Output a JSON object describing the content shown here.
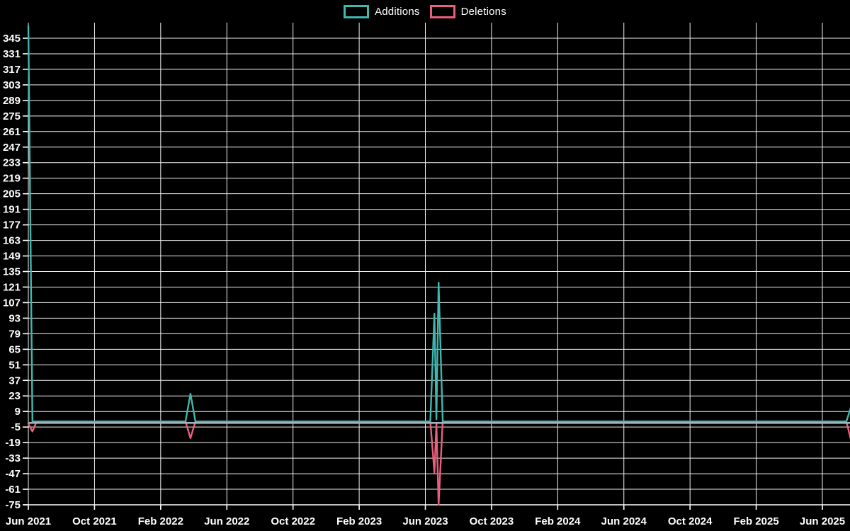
{
  "legend": {
    "items": [
      {
        "label": "Additions",
        "color": "#3fb8af"
      },
      {
        "label": "Deletions",
        "color": "#e9607e"
      }
    ]
  },
  "chart_data": {
    "type": "line",
    "title": "",
    "background_color": "#000000",
    "gridline_color": "#f2f2f2",
    "text_color": "#ffffff",
    "zero_line_color": "#9fb4c0",
    "grid": true,
    "legend_position": "top-center",
    "x_axis": {
      "start": "Jun 2021",
      "end": "Jun 2025",
      "months_between_ticks": 4,
      "total_months": 48,
      "tick_labels": [
        "Jun 2021",
        "Oct 2021",
        "Feb 2022",
        "Jun 2022",
        "Oct 2022",
        "Feb 2023",
        "Jun 2023",
        "Oct 2023",
        "Feb 2024",
        "Jun 2024",
        "Oct 2024",
        "Feb 2025",
        "Jun 2025"
      ]
    },
    "y_axis": {
      "tick_step": 14,
      "ylim": [
        -75,
        356
      ],
      "tick_values": [
        345,
        331,
        317,
        303,
        289,
        275,
        261,
        247,
        233,
        219,
        205,
        191,
        177,
        163,
        149,
        135,
        121,
        107,
        93,
        79,
        65,
        51,
        37,
        23,
        9,
        -5,
        -19,
        -33,
        -47,
        -61,
        -75
      ]
    },
    "series": [
      {
        "name": "Additions",
        "color": "#3fb8af",
        "points_months_value": [
          [
            0,
            356
          ],
          [
            0.25,
            0
          ],
          [
            9.5,
            0
          ],
          [
            9.8,
            25
          ],
          [
            10.1,
            0
          ],
          [
            24.3,
            0
          ],
          [
            24.55,
            97
          ],
          [
            24.67,
            2
          ],
          [
            24.8,
            125
          ],
          [
            25.05,
            0
          ],
          [
            49.45,
            0
          ],
          [
            49.75,
            14
          ]
        ]
      },
      {
        "name": "Deletions",
        "color": "#e9607e",
        "points_months_value": [
          [
            0,
            -2
          ],
          [
            0.25,
            -9
          ],
          [
            0.5,
            0
          ],
          [
            9.5,
            0
          ],
          [
            9.8,
            -15
          ],
          [
            10.1,
            0
          ],
          [
            24.3,
            0
          ],
          [
            24.55,
            -46
          ],
          [
            24.67,
            -2
          ],
          [
            24.8,
            -75
          ],
          [
            25.05,
            0
          ],
          [
            49.45,
            0
          ],
          [
            49.75,
            -18
          ]
        ]
      }
    ],
    "notable_spikes": [
      {
        "date": "Jun 2021",
        "additions": 356,
        "deletions": -9,
        "note": "additions spike clipped at top of plot"
      },
      {
        "date": "Apr 2022",
        "additions": 25,
        "deletions": -15
      },
      {
        "date": "Jun 2023 week 1",
        "additions": 97,
        "deletions": -46
      },
      {
        "date": "Jun 2023 week 2",
        "additions": 125,
        "deletions": -75
      },
      {
        "date": "Jul 2025",
        "additions": 14,
        "deletions": -18,
        "note": "clipped at right edge of plot"
      }
    ]
  }
}
